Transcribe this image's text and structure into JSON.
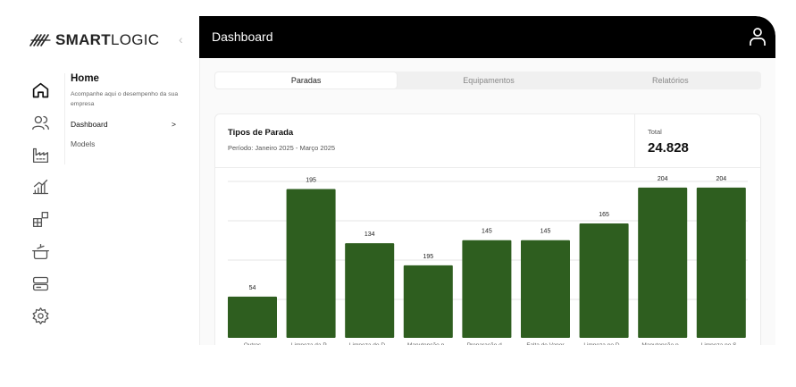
{
  "brand": {
    "name_bold": "SMART",
    "name_light": "LOGIC"
  },
  "sidebar": {
    "collapse_icon": "chevron-left-icon",
    "icons": [
      "home-icon",
      "users-icon",
      "factory-icon",
      "chart-icon",
      "blocks-icon",
      "pot-icon",
      "server-icon",
      "gear-icon"
    ]
  },
  "subnav": {
    "title": "Home",
    "description": "Acompanhe aqui o desempenho da sua empresa",
    "items": [
      {
        "label": "Dashboard",
        "chevron": ">"
      },
      {
        "label": "Models"
      }
    ]
  },
  "header": {
    "title": "Dashboard",
    "user_icon": "user-icon"
  },
  "tabs": [
    {
      "label": "Paradas",
      "active": true
    },
    {
      "label": "Equipamentos",
      "active": false
    },
    {
      "label": "Relatórios",
      "active": false
    }
  ],
  "card": {
    "title": "Tipos de Parada",
    "subtitle": "Período: Janeiro 2025 - Março 2025",
    "total_label": "Total",
    "total_value": "24.828"
  },
  "colors": {
    "bar": "#2e5e1f",
    "header_bg": "#000000"
  },
  "chart_data": {
    "type": "bar",
    "categories": [
      "Outros",
      "Limpeza da P...",
      "Limpeza do D...",
      "Manutenção p...",
      "Preparação d...",
      "Falta de Vapor",
      "Limpeza no D...",
      "Manutenção p...",
      "Limpeza no S..."
    ],
    "values": [
      54,
      195,
      134,
      195,
      145,
      145,
      165,
      204,
      204
    ],
    "heights": [
      54,
      195,
      124,
      95,
      128,
      128,
      150,
      197,
      197
    ],
    "grid": true
  }
}
